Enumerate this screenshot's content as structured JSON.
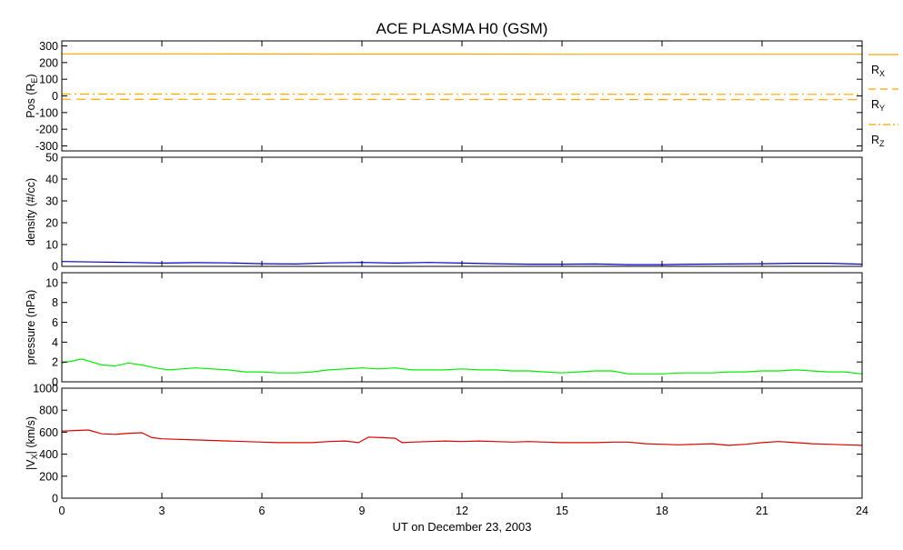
{
  "chart_data": {
    "title": "ACE PLASMA H0 (GSM)",
    "xlabel": "UT on December 23, 2003",
    "x_ticks": [
      "0",
      "3",
      "6",
      "9",
      "12",
      "15",
      "18",
      "21",
      "24"
    ],
    "xlim": [
      0,
      24
    ],
    "panels": [
      {
        "id": "pos",
        "type": "line",
        "ylabel": "Pos (R",
        "ylabel_sub": "E",
        "ylabel_end": ")",
        "ylim": [
          -330,
          330
        ],
        "y_ticks": [
          "300",
          "200",
          "100",
          "0",
          "-100",
          "-200",
          "-300"
        ],
        "series": [
          {
            "name": "R",
            "sub": "X",
            "color": "#ffa500",
            "dash": "solid",
            "x": [
              0,
              4,
              8,
              12,
              16,
              20,
              24
            ],
            "y": [
              252,
              252,
              251,
              251,
              250,
              250,
              250
            ]
          },
          {
            "name": "R",
            "sub": "Y",
            "color": "#ffa500",
            "dash": "dashed",
            "x": [
              0,
              4,
              8,
              12,
              16,
              20,
              24
            ],
            "y": [
              -20,
              -21,
              -21,
              -22,
              -22,
              -23,
              -23
            ]
          },
          {
            "name": "R",
            "sub": "Z",
            "color": "#ffa500",
            "dash": "dashdot",
            "x": [
              0,
              4,
              8,
              12,
              16,
              20,
              24
            ],
            "y": [
              11,
              11,
              10,
              10,
              10,
              9,
              9
            ]
          }
        ]
      },
      {
        "id": "density",
        "type": "line",
        "ylabel": "density (#/cc)",
        "ylim": [
          0,
          50
        ],
        "y_ticks": [
          "50",
          "40",
          "30",
          "20",
          "10",
          "0"
        ],
        "series": [
          {
            "color": "#0000cc",
            "x": [
              0,
              1,
              2,
              3,
              4,
              5,
              6,
              7,
              8,
              9,
              10,
              11,
              12,
              13,
              14,
              15,
              16,
              17,
              18,
              19,
              20,
              21,
              22,
              23,
              24
            ],
            "y": [
              2.2,
              2.0,
              1.8,
              1.5,
              1.7,
              1.6,
              1.2,
              1.1,
              1.6,
              1.8,
              1.5,
              1.8,
              1.5,
              1.2,
              1.0,
              1.0,
              1.1,
              0.8,
              0.8,
              1.0,
              1.1,
              1.2,
              1.4,
              1.4,
              1.0
            ]
          }
        ]
      },
      {
        "id": "pressure",
        "type": "line",
        "ylabel": "pressure (nPa)",
        "ylim": [
          0,
          11
        ],
        "y_ticks": [
          "10",
          "8",
          "6",
          "4",
          "2",
          "0"
        ],
        "series": [
          {
            "color": "#00ee00",
            "x": [
              0,
              0.3,
              0.6,
              0.9,
              1.2,
              1.6,
              2.0,
              2.4,
              2.8,
              3.2,
              3.6,
              4.0,
              4.5,
              5.0,
              5.5,
              6.0,
              6.5,
              7.0,
              7.5,
              8.0,
              8.5,
              9.0,
              9.5,
              10.0,
              10.5,
              11.0,
              11.5,
              12.0,
              12.5,
              13.0,
              13.5,
              14.0,
              14.5,
              15.0,
              15.5,
              16.0,
              16.5,
              17.0,
              17.5,
              18.0,
              18.5,
              19.0,
              19.5,
              20.0,
              20.5,
              21.0,
              21.5,
              22.0,
              22.5,
              23.0,
              23.5,
              24.0
            ],
            "y": [
              1.9,
              2.1,
              2.3,
              2.0,
              1.7,
              1.6,
              1.9,
              1.7,
              1.4,
              1.2,
              1.3,
              1.4,
              1.3,
              1.2,
              1.0,
              1.0,
              0.9,
              0.9,
              1.0,
              1.2,
              1.3,
              1.4,
              1.3,
              1.4,
              1.2,
              1.2,
              1.2,
              1.3,
              1.2,
              1.2,
              1.1,
              1.1,
              1.0,
              0.9,
              1.0,
              1.1,
              1.1,
              0.8,
              0.8,
              0.8,
              0.9,
              0.9,
              0.9,
              1.0,
              1.0,
              1.1,
              1.1,
              1.2,
              1.1,
              1.0,
              1.0,
              0.8
            ]
          }
        ]
      },
      {
        "id": "vx",
        "type": "line",
        "ylabel": "|V",
        "ylabel_sub": "X",
        "ylabel_end": "| (km/s)",
        "ylim": [
          0,
          1000
        ],
        "y_ticks": [
          "1000",
          "800",
          "600",
          "400",
          "200",
          "0"
        ],
        "series": [
          {
            "color": "#dd0000",
            "x": [
              0,
              0.4,
              0.8,
              1.2,
              1.6,
              2.0,
              2.4,
              2.7,
              3.0,
              3.5,
              4.0,
              4.5,
              5.0,
              5.5,
              6.0,
              6.5,
              7.0,
              7.5,
              8.0,
              8.5,
              8.9,
              9.2,
              9.6,
              10.0,
              10.2,
              10.5,
              11.0,
              11.5,
              12.0,
              12.5,
              13.0,
              13.5,
              14.0,
              14.5,
              15.0,
              15.5,
              16.0,
              16.5,
              17.0,
              17.5,
              18.0,
              18.5,
              19.0,
              19.5,
              20.0,
              20.5,
              21.0,
              21.5,
              22.0,
              22.5,
              23.0,
              23.5,
              24.0
            ],
            "y": [
              610,
              615,
              620,
              585,
              580,
              590,
              595,
              550,
              540,
              535,
              530,
              525,
              520,
              515,
              510,
              505,
              505,
              505,
              515,
              520,
              505,
              555,
              550,
              545,
              505,
              510,
              515,
              520,
              515,
              520,
              515,
              510,
              515,
              510,
              505,
              505,
              505,
              510,
              510,
              495,
              490,
              485,
              490,
              495,
              480,
              490,
              505,
              515,
              505,
              495,
              490,
              485,
              480
            ]
          }
        ]
      }
    ]
  }
}
